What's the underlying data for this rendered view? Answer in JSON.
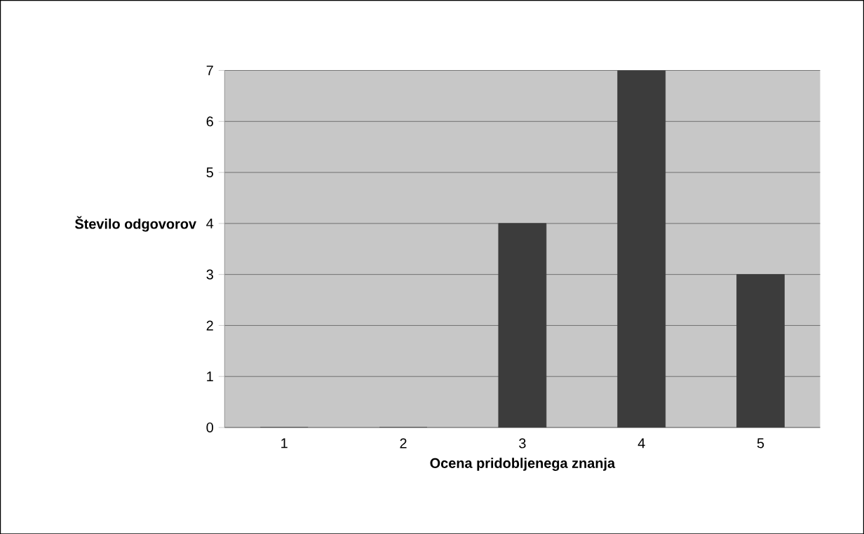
{
  "chart_data": {
    "type": "bar",
    "xlabel": "Ocena pridobljenega znanja",
    "ylabel": "Število odgovorov",
    "categories": [
      "1",
      "2",
      "3",
      "4",
      "5"
    ],
    "values": [
      0,
      0,
      4,
      7,
      3
    ],
    "color": "#3c3c3c",
    "ylim": [
      0,
      7
    ],
    "yticks": [
      0,
      1,
      2,
      3,
      4,
      5,
      6,
      7
    ],
    "grid": "y"
  }
}
